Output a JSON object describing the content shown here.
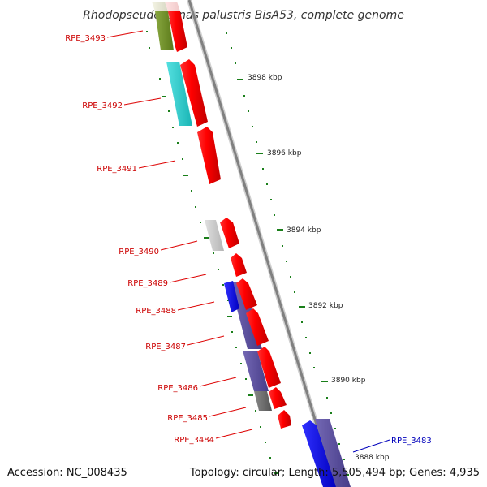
{
  "title": "Rhodopseudomonas palustris BisA53, complete genome",
  "footer": {
    "accession": "Accession: NC_008435",
    "summary": "Topology: circular; Length: 5,505,494 bp; Genes: 4,935"
  },
  "kbp_labels": [
    "3898 kbp",
    "3896 kbp",
    "3894 kbp",
    "3892 kbp",
    "3890 kbp",
    "3888 kbp"
  ],
  "genes": [
    {
      "label": "RPE_3493",
      "color": "#cc0000"
    },
    {
      "label": "RPE_3492",
      "color": "#cc0000"
    },
    {
      "label": "RPE_3491",
      "color": "#cc0000"
    },
    {
      "label": "RPE_3490",
      "color": "#cc0000"
    },
    {
      "label": "RPE_3489",
      "color": "#cc0000"
    },
    {
      "label": "RPE_3488",
      "color": "#cc0000"
    },
    {
      "label": "RPE_3487",
      "color": "#cc0000"
    },
    {
      "label": "RPE_3486",
      "color": "#cc0000"
    },
    {
      "label": "RPE_3485",
      "color": "#cc0000"
    },
    {
      "label": "RPE_3484",
      "color": "#cc0000"
    },
    {
      "label": "RPE_3483",
      "color": "#0000bb"
    }
  ],
  "colors": {
    "forward_strand": "#ff0000",
    "reverse_strand": "#0000ff",
    "cog_cyan": "#22cccc",
    "cog_olive": "#6b8e23",
    "cog_purple": "#5a4f9a",
    "cog_gray": "#cccccc",
    "cog_dark": "#666666",
    "backbone": "#888888",
    "tick_green": "#1a7f1a"
  }
}
